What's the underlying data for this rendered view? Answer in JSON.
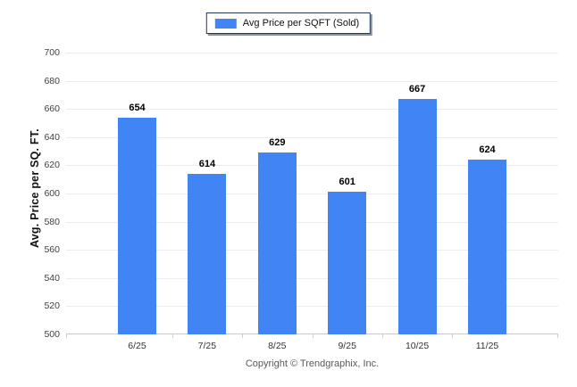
{
  "chart_data": {
    "type": "bar",
    "series_name": "Avg Price per SQFT (Sold)",
    "categories": [
      "6/25",
      "7/25",
      "8/25",
      "9/25",
      "10/25",
      "11/25"
    ],
    "values": [
      654,
      614,
      629,
      601,
      667,
      624
    ],
    "title": "",
    "xlabel": "",
    "ylabel": "Avg. Price per SQ. FT.",
    "ylim": [
      500,
      700
    ],
    "ytick_step": 20,
    "grid": true,
    "legend_position": "top-center",
    "bar_color": "#4184f4",
    "value_labels_shown": true
  },
  "footer": {
    "copyright": "Copyright © Trendgraphix, Inc."
  }
}
